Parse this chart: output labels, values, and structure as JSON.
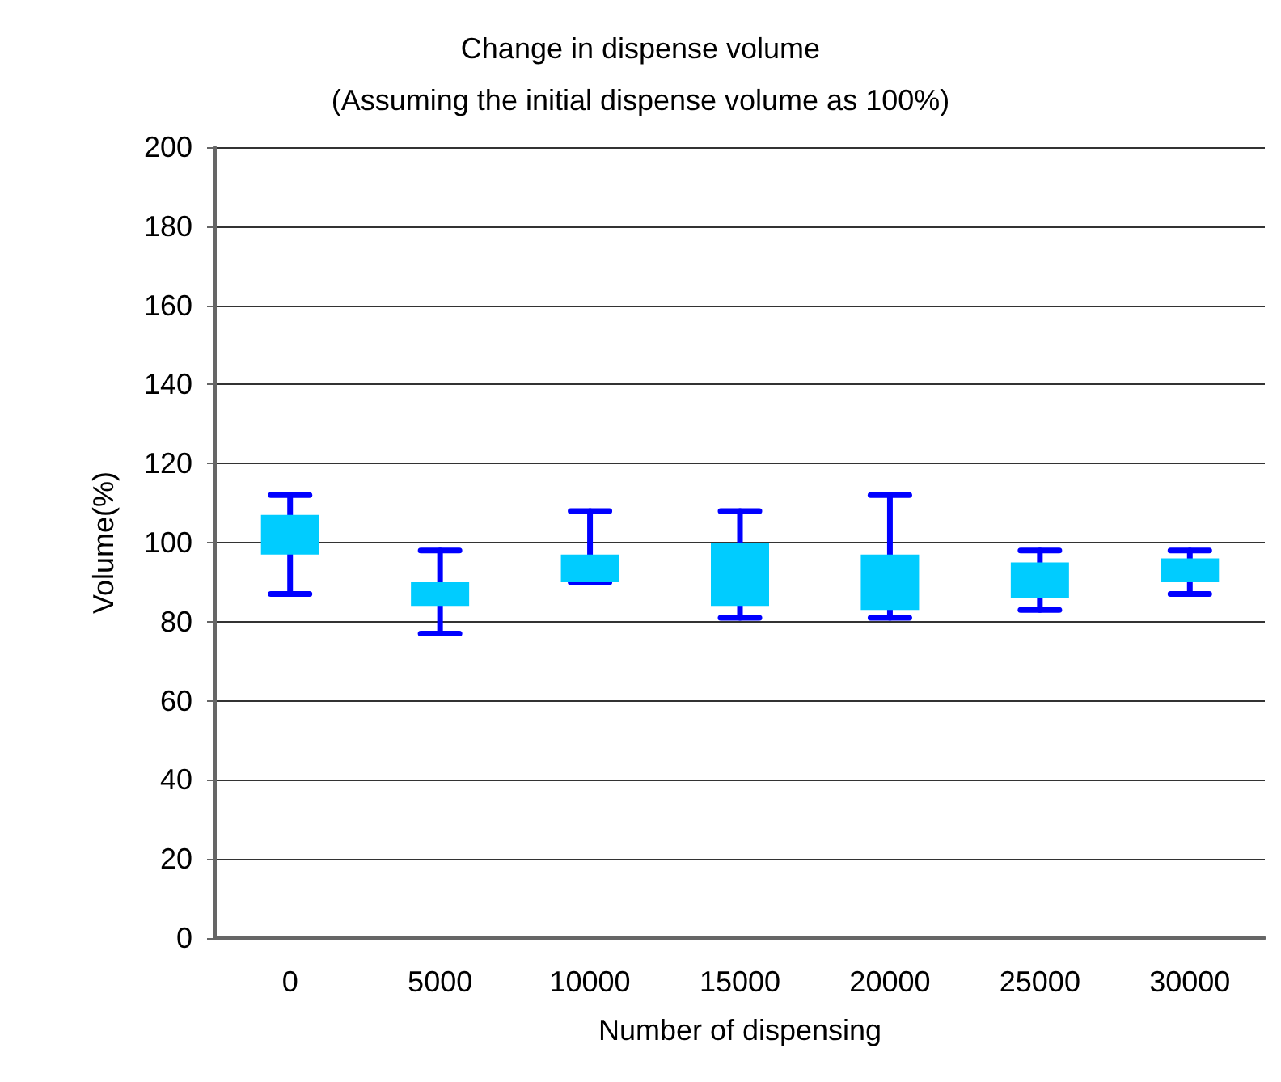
{
  "chart_data": {
    "type": "box",
    "title": "Change in dispense volume",
    "subtitle": "(Assuming the initial dispense volume as 100%)",
    "xlabel": "Number of dispensing",
    "ylabel": "Volume(%)",
    "categories": [
      "0",
      "5000",
      "10000",
      "15000",
      "20000",
      "25000",
      "30000"
    ],
    "series": [
      {
        "color": "#00ccff",
        "boxes": [
          {
            "low": 87,
            "q1": 97,
            "q3": 107,
            "high": 112
          },
          {
            "low": 77,
            "q1": 84,
            "q3": 90,
            "high": 98
          },
          {
            "low": 90,
            "q1": 90,
            "q3": 97,
            "high": 108
          },
          {
            "low": 81,
            "q1": 84,
            "q3": 100,
            "high": 108
          },
          {
            "low": 81,
            "q1": 83,
            "q3": 97,
            "high": 112
          },
          {
            "low": 83,
            "q1": 86,
            "q3": 95,
            "high": 98
          },
          {
            "low": 87,
            "q1": 90,
            "q3": 96,
            "high": 98
          }
        ]
      }
    ],
    "ylim": [
      0,
      200
    ],
    "yticks": [
      0,
      20,
      40,
      60,
      80,
      100,
      120,
      140,
      160,
      180,
      200
    ],
    "grid": "y"
  }
}
